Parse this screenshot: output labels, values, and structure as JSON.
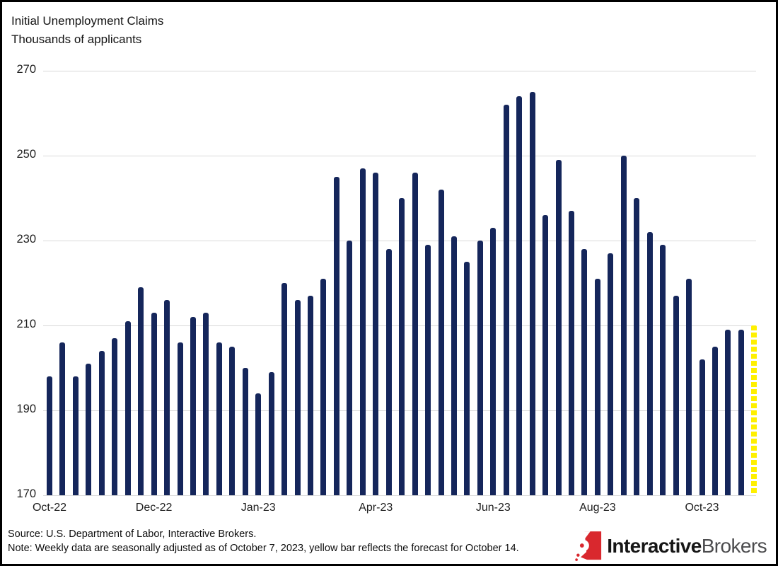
{
  "title": {
    "line1": "Initial Unemployment Claims",
    "line2": "Thousands of applicants"
  },
  "chart_data": {
    "type": "bar",
    "title": "Initial Unemployment Claims",
    "ylabel": "Thousands of applicants",
    "ylim": [
      170,
      270
    ],
    "yticks": [
      270,
      250,
      230,
      210,
      190,
      170
    ],
    "grid": true,
    "x_unit": "week",
    "xtick_labels": [
      "Oct-22",
      "Dec-22",
      "Jan-23",
      "Apr-23",
      "Jun-23",
      "Aug-23",
      "Oct-23"
    ],
    "xtick_bar_indices": [
      0,
      8,
      16,
      25,
      34,
      42,
      50
    ],
    "values": [
      198,
      206,
      198,
      201,
      204,
      207,
      211,
      219,
      213,
      216,
      206,
      212,
      213,
      206,
      205,
      200,
      194,
      199,
      220,
      216,
      217,
      221,
      245,
      230,
      247,
      246,
      228,
      240,
      246,
      229,
      242,
      231,
      225,
      230,
      233,
      262,
      264,
      265,
      236,
      249,
      237,
      228,
      221,
      227,
      250,
      240,
      232,
      229,
      217,
      221,
      202,
      205,
      209,
      209,
      210
    ],
    "forecast_last_bar": true,
    "forecast_value": 210,
    "bar_color": "#15265B",
    "forecast_color": "#FFF000",
    "gridline_color": "#D9D9D9"
  },
  "footer": {
    "source": "Source: U.S. Department of Labor, Interactive Brokers.",
    "note": "Note: Weekly data are seasonally adjusted as of October 7, 2023, yellow bar reflects the forecast for October 14."
  },
  "logo": {
    "bold": "Interactive",
    "light": "Brokers",
    "icon_color": "#D9282E"
  }
}
